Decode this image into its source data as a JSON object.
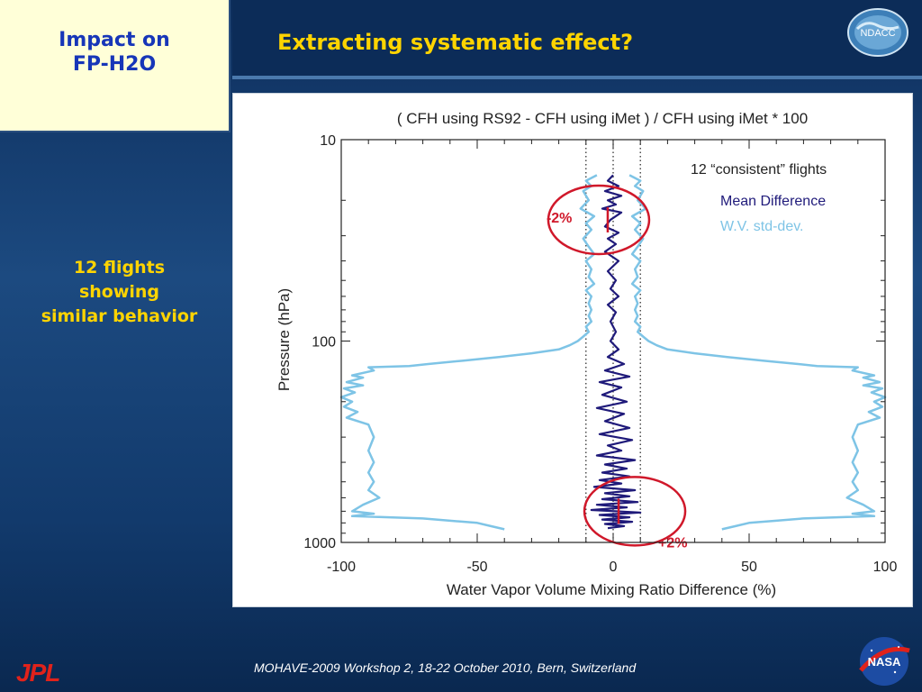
{
  "sidebar": {
    "topic_line1": "Impact on",
    "topic_line2": "FP-H2O",
    "note_line1": "12 flights",
    "note_line2": "showing",
    "note_line3": "similar behavior"
  },
  "header": {
    "title": "Extracting systematic effect?",
    "logo_text": "NDACC"
  },
  "footer": {
    "text": "MOHAVE-2009 Workshop 2, 18-22 October 2010, Bern, Switzerland",
    "jpl_logo_text": "JPL",
    "nasa_logo_text": "NASA"
  },
  "chart_data": {
    "type": "line",
    "title": "( CFH using RS92 - CFH using iMet ) / CFH using iMet * 100",
    "xlabel": "Water Vapor Volume Mixing Ratio Difference (%)",
    "ylabel": "Pressure (hPa)",
    "xlim": [
      -100,
      100
    ],
    "ylim": [
      1000,
      10
    ],
    "y_scale": "log",
    "y_reversed": true,
    "x_ticks": [
      -100,
      -50,
      0,
      50,
      100
    ],
    "x_tick_labels": [
      "-100",
      "-50",
      "0",
      "50",
      "100"
    ],
    "y_ticks": [
      10,
      100,
      1000
    ],
    "y_tick_labels": [
      "10",
      "100",
      "1000"
    ],
    "reference_lines_x": [
      -10,
      0,
      10
    ],
    "legend": {
      "placement": "top-right",
      "header": "12 “consistent” flights",
      "entries": [
        "Mean Difference",
        "W.V. std-dev."
      ]
    },
    "colors": {
      "mean": "#1f1a7a",
      "std": "#7ec4e6",
      "annotation": "#d0182a"
    },
    "annotations": [
      {
        "text": "-2%",
        "x": -2,
        "p": 25
      },
      {
        "text": "+2%",
        "x": 2,
        "p": 700
      }
    ],
    "series": [
      {
        "name": "Mean Difference",
        "points": [
          [
            0,
            15
          ],
          [
            -2,
            16
          ],
          [
            2,
            17
          ],
          [
            -3,
            18
          ],
          [
            3,
            19
          ],
          [
            -2,
            20
          ],
          [
            1,
            21
          ],
          [
            -4,
            22
          ],
          [
            3,
            23
          ],
          [
            -1,
            25
          ],
          [
            -3,
            27
          ],
          [
            2,
            29
          ],
          [
            -2,
            31
          ],
          [
            1,
            33
          ],
          [
            -3,
            36
          ],
          [
            2,
            40
          ],
          [
            -2,
            45
          ],
          [
            1,
            50
          ],
          [
            -1,
            55
          ],
          [
            2,
            60
          ],
          [
            -2,
            66
          ],
          [
            1,
            72
          ],
          [
            -1,
            80
          ],
          [
            1,
            90
          ],
          [
            -1,
            100
          ],
          [
            2,
            110
          ],
          [
            -2,
            120
          ],
          [
            4,
            130
          ],
          [
            -3,
            140
          ],
          [
            6,
            150
          ],
          [
            -5,
            160
          ],
          [
            3,
            170
          ],
          [
            -4,
            185
          ],
          [
            5,
            200
          ],
          [
            -6,
            215
          ],
          [
            4,
            230
          ],
          [
            -3,
            250
          ],
          [
            6,
            270
          ],
          [
            -5,
            290
          ],
          [
            7,
            310
          ],
          [
            -2,
            330
          ],
          [
            3,
            350
          ],
          [
            -6,
            370
          ],
          [
            8,
            390
          ],
          [
            -3,
            410
          ],
          [
            5,
            430
          ],
          [
            -4,
            450
          ],
          [
            6,
            470
          ],
          [
            -5,
            490
          ],
          [
            3,
            510
          ],
          [
            -7,
            530
          ],
          [
            8,
            550
          ],
          [
            -3,
            570
          ],
          [
            6,
            590
          ],
          [
            -4,
            610
          ],
          [
            9,
            630
          ],
          [
            -6,
            650
          ],
          [
            5,
            670
          ],
          [
            -8,
            690
          ],
          [
            10,
            710
          ],
          [
            -5,
            730
          ],
          [
            6,
            750
          ],
          [
            -4,
            770
          ],
          [
            7,
            790
          ],
          [
            -3,
            810
          ],
          [
            4,
            830
          ],
          [
            -2,
            850
          ]
        ]
      },
      {
        "name": "W.V. std-dev.",
        "points_positive": [
          [
            6,
            15
          ],
          [
            10,
            16
          ],
          [
            8,
            17
          ],
          [
            11,
            18
          ],
          [
            9,
            20
          ],
          [
            12,
            22
          ],
          [
            7,
            24
          ],
          [
            10,
            26
          ],
          [
            8,
            28
          ],
          [
            11,
            31
          ],
          [
            9,
            34
          ],
          [
            7,
            37
          ],
          [
            10,
            40
          ],
          [
            8,
            44
          ],
          [
            9,
            48
          ],
          [
            7,
            52
          ],
          [
            10,
            56
          ],
          [
            8,
            60
          ],
          [
            9,
            65
          ],
          [
            8,
            70
          ],
          [
            9,
            75
          ],
          [
            8,
            80
          ],
          [
            10,
            85
          ],
          [
            9,
            90
          ],
          [
            11,
            95
          ],
          [
            13,
            100
          ],
          [
            16,
            105
          ],
          [
            20,
            110
          ],
          [
            30,
            115
          ],
          [
            42,
            120
          ],
          [
            55,
            125
          ],
          [
            68,
            130
          ],
          [
            75,
            133
          ],
          [
            90,
            135
          ],
          [
            88,
            140
          ],
          [
            96,
            148
          ],
          [
            92,
            152
          ],
          [
            98,
            160
          ],
          [
            92,
            166
          ],
          [
            99,
            172
          ],
          [
            95,
            180
          ],
          [
            100,
            190
          ],
          [
            96,
            200
          ],
          [
            99,
            212
          ],
          [
            94,
            225
          ],
          [
            98,
            240
          ],
          [
            90,
            260
          ],
          [
            88,
            300
          ],
          [
            90,
            350
          ],
          [
            88,
            400
          ],
          [
            90,
            450
          ],
          [
            88,
            500
          ],
          [
            90,
            550
          ],
          [
            86,
            600
          ],
          [
            92,
            650
          ],
          [
            96,
            700
          ],
          [
            88,
            720
          ],
          [
            96,
            740
          ],
          [
            70,
            760
          ],
          [
            60,
            780
          ],
          [
            50,
            800
          ],
          [
            45,
            830
          ],
          [
            40,
            860
          ]
        ],
        "points_negative": [
          [
            -6,
            15
          ],
          [
            -10,
            16
          ],
          [
            -8,
            17
          ],
          [
            -11,
            18
          ],
          [
            -9,
            20
          ],
          [
            -12,
            22
          ],
          [
            -7,
            24
          ],
          [
            -10,
            26
          ],
          [
            -8,
            28
          ],
          [
            -11,
            31
          ],
          [
            -9,
            34
          ],
          [
            -7,
            37
          ],
          [
            -10,
            40
          ],
          [
            -8,
            44
          ],
          [
            -9,
            48
          ],
          [
            -7,
            52
          ],
          [
            -10,
            56
          ],
          [
            -8,
            60
          ],
          [
            -9,
            65
          ],
          [
            -8,
            70
          ],
          [
            -9,
            75
          ],
          [
            -8,
            80
          ],
          [
            -10,
            85
          ],
          [
            -9,
            90
          ],
          [
            -11,
            95
          ],
          [
            -13,
            100
          ],
          [
            -16,
            105
          ],
          [
            -20,
            110
          ],
          [
            -30,
            115
          ],
          [
            -42,
            120
          ],
          [
            -55,
            125
          ],
          [
            -68,
            130
          ],
          [
            -75,
            133
          ],
          [
            -90,
            135
          ],
          [
            -88,
            140
          ],
          [
            -96,
            148
          ],
          [
            -92,
            152
          ],
          [
            -98,
            160
          ],
          [
            -92,
            166
          ],
          [
            -99,
            172
          ],
          [
            -95,
            180
          ],
          [
            -100,
            190
          ],
          [
            -96,
            200
          ],
          [
            -99,
            212
          ],
          [
            -94,
            225
          ],
          [
            -98,
            240
          ],
          [
            -90,
            260
          ],
          [
            -88,
            300
          ],
          [
            -90,
            350
          ],
          [
            -88,
            400
          ],
          [
            -90,
            450
          ],
          [
            -88,
            500
          ],
          [
            -90,
            550
          ],
          [
            -86,
            600
          ],
          [
            -92,
            650
          ],
          [
            -96,
            700
          ],
          [
            -88,
            720
          ],
          [
            -96,
            740
          ],
          [
            -70,
            760
          ],
          [
            -60,
            780
          ],
          [
            -50,
            800
          ],
          [
            -45,
            830
          ],
          [
            -40,
            860
          ]
        ]
      }
    ]
  }
}
